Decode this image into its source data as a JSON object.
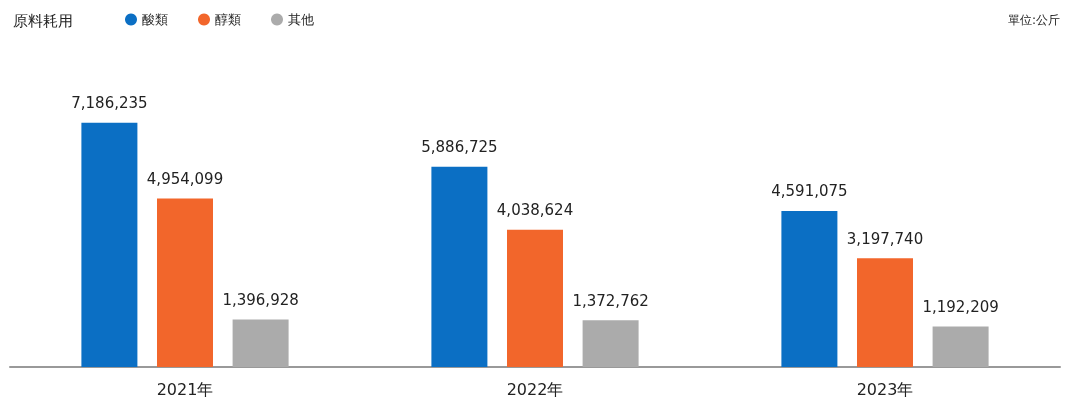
{
  "chart_data": {
    "type": "bar",
    "title": "原料耗用",
    "annotations": [
      "單位:公斤"
    ],
    "categories": [
      "2021年",
      "2022年",
      "2023年"
    ],
    "series": [
      {
        "name": "酸類",
        "color": "#0b6fc4",
        "values": [
          7186235,
          5886725,
          4591075
        ],
        "value_labels": [
          "7,186,235",
          "5,886,725",
          "4,591,075"
        ]
      },
      {
        "name": "醇類",
        "color": "#f2662b",
        "values": [
          4954099,
          4038624,
          3197740
        ],
        "value_labels": [
          "4,954,099",
          "4,038,624",
          "3,197,740"
        ]
      },
      {
        "name": "其他",
        "color": "#ababab",
        "values": [
          1396928,
          1372762,
          1192209
        ],
        "value_labels": [
          "1,396,928",
          "1,372,762",
          "1,192,209"
        ]
      }
    ],
    "legend": "top left"
  }
}
